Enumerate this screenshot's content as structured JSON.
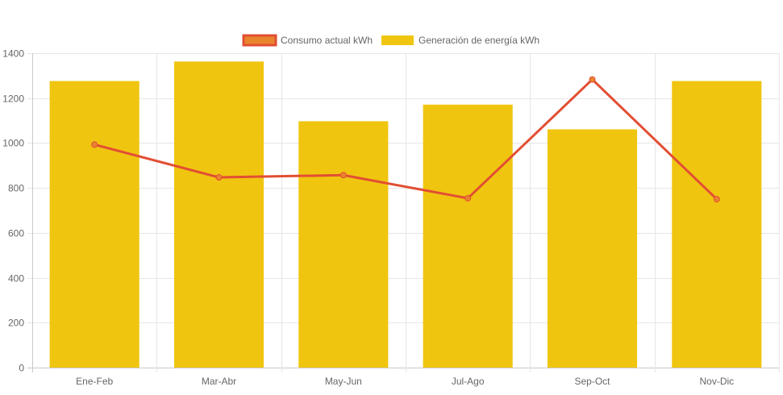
{
  "chart_data": {
    "type": "bar",
    "categories": [
      "Ene-Feb",
      "Mar-Abr",
      "May-Jun",
      "Jul-Ago",
      "Sep-Oct",
      "Nov-Dic"
    ],
    "series": [
      {
        "name": "Consumo actual kWh",
        "type": "line",
        "color": "#e24e33",
        "point_fill": "#e8842e",
        "values": [
          993,
          847,
          857,
          754,
          1283,
          750
        ]
      },
      {
        "name": "Generación de energía kWh",
        "type": "bar",
        "color": "#f0c510",
        "values": [
          1276,
          1363,
          1097,
          1171,
          1061,
          1276
        ]
      }
    ],
    "ylim": [
      0,
      1400
    ],
    "yticks": [
      0,
      200,
      400,
      600,
      800,
      1000,
      1200,
      1400
    ],
    "grid": true,
    "legend_position": "top"
  }
}
